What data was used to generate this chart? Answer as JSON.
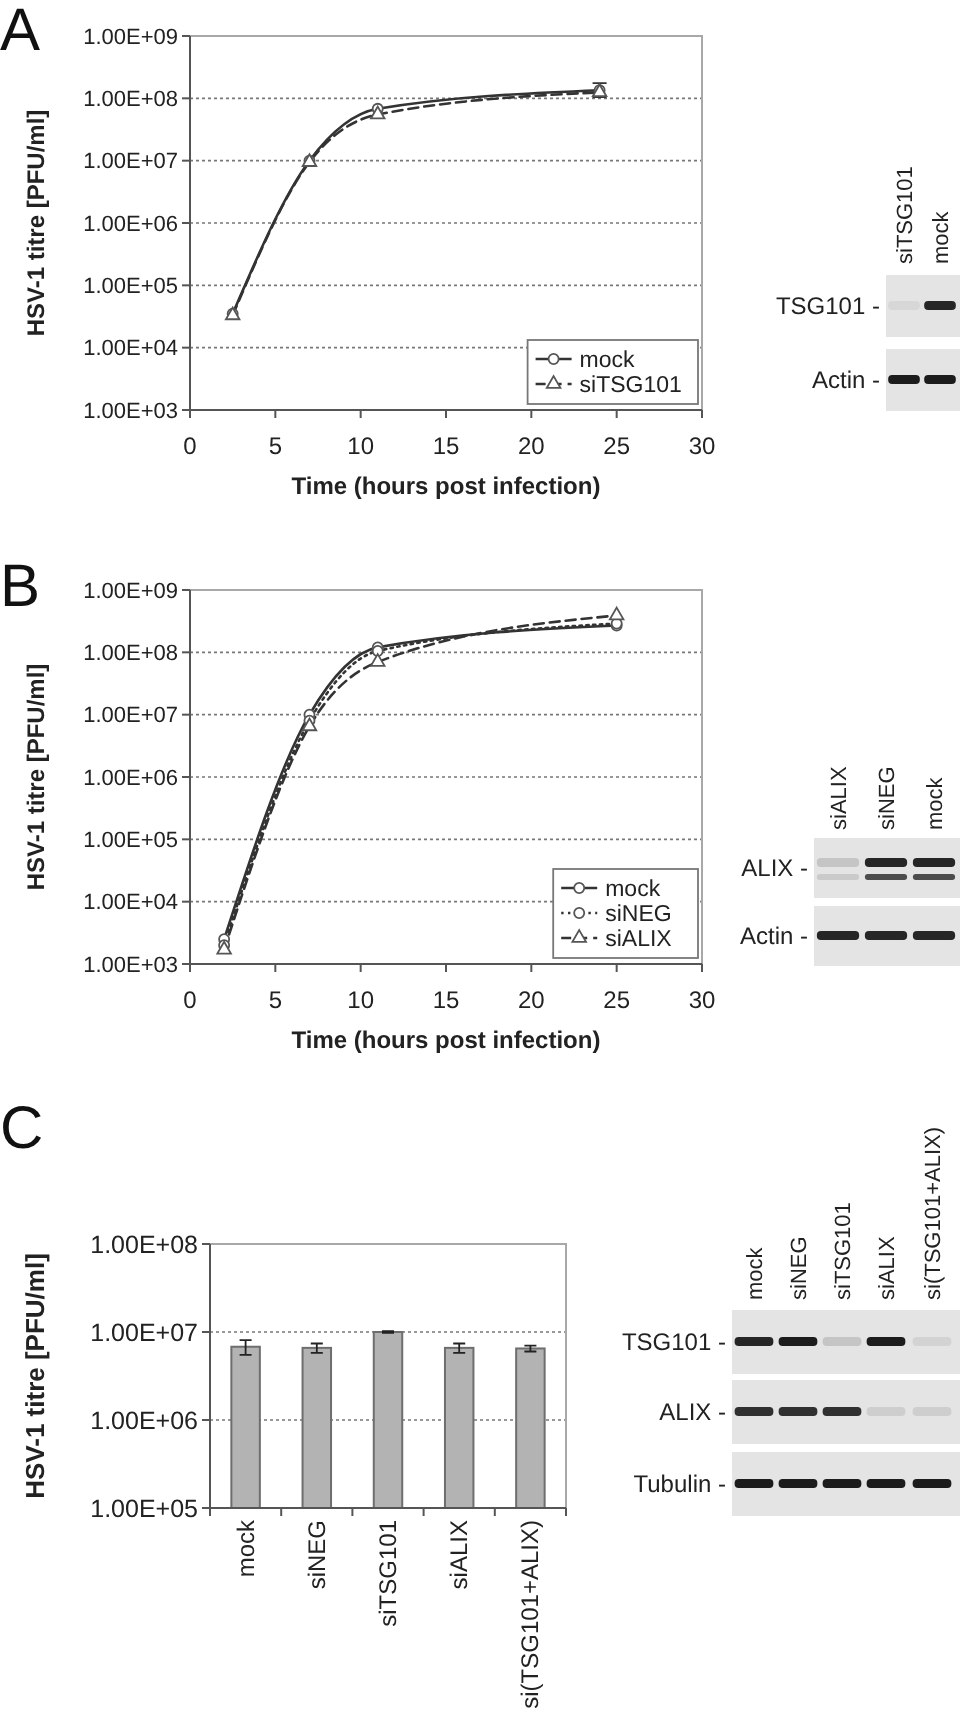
{
  "chart_data": [
    {
      "type": "line",
      "title": "A",
      "xlabel": "Time (hours post infection)",
      "ylabel": "HSV-1 titre [PFU/ml]",
      "log": "y",
      "xlim": [
        0,
        30
      ],
      "xticks": [
        0,
        5,
        10,
        15,
        20,
        25,
        30
      ],
      "ylim": [
        1000,
        1000000000
      ],
      "yticks": [
        {
          "value": 1000,
          "label": "1.00E+03"
        },
        {
          "value": 10000,
          "label": "1.00E+04"
        },
        {
          "value": 100000,
          "label": "1.00E+05"
        },
        {
          "value": 1000000,
          "label": "1.00E+06"
        },
        {
          "value": 10000000,
          "label": "1.00E+07"
        },
        {
          "value": 100000000,
          "label": "1.00E+08"
        },
        {
          "value": 1000000000,
          "label": "1.00E+09"
        }
      ],
      "grid": "y",
      "legend": "bottom right",
      "series": [
        {
          "name": "mock",
          "color": "#333333",
          "x": [
            2.5,
            7,
            11,
            24
          ],
          "values": [
            35000,
            10000000,
            68000000,
            135000000
          ],
          "errors": [
            null,
            null,
            null,
            [
              105000000,
              175000000
            ]
          ],
          "marker": "circle",
          "line_style": "solid"
        },
        {
          "name": "siTSG101",
          "color": "#333333",
          "x": [
            2.5,
            7,
            11,
            24
          ],
          "values": [
            33000,
            9500000,
            55000000,
            125000000
          ],
          "marker": "triangle",
          "line_style": "dashed"
        }
      ]
    },
    {
      "type": "other",
      "categories": [
        "siTSG101",
        "mock"
      ],
      "y_categories": [
        "TSG101 -",
        "Actin -"
      ]
    },
    {
      "type": "line",
      "title": "B",
      "xlabel": "Time (hours post infection)",
      "ylabel": "HSV-1 titre [PFU/ml]",
      "log": "y",
      "xlim": [
        0,
        30
      ],
      "xticks": [
        0,
        5,
        10,
        15,
        20,
        25,
        30
      ],
      "ylim": [
        1000,
        1000000000
      ],
      "yticks": [
        {
          "value": 1000,
          "label": "1.00E+03"
        },
        {
          "value": 10000,
          "label": "1.00E+04"
        },
        {
          "value": 100000,
          "label": "1.00E+05"
        },
        {
          "value": 1000000,
          "label": "1.00E+06"
        },
        {
          "value": 10000000,
          "label": "1.00E+07"
        },
        {
          "value": 100000000,
          "label": "1.00E+08"
        },
        {
          "value": 1000000000,
          "label": "1.00E+09"
        }
      ],
      "grid": "y",
      "legend": "bottom right",
      "series": [
        {
          "name": "mock",
          "color": "#333333",
          "x": [
            2,
            7,
            11,
            25
          ],
          "values": [
            2500,
            10000000,
            120000000,
            270000000
          ],
          "marker": "circle",
          "line_style": "solid"
        },
        {
          "name": "siNEG",
          "color": "#333333",
          "x": [
            2,
            7,
            11,
            25
          ],
          "values": [
            2000,
            8000000,
            105000000,
            290000000
          ],
          "marker": "circle",
          "line_style": "dotted"
        },
        {
          "name": "siALIX",
          "color": "#333333",
          "x": [
            2,
            7,
            11,
            25
          ],
          "values": [
            1700,
            6500000,
            70000000,
            390000000
          ],
          "marker": "triangle",
          "line_style": "dashed"
        }
      ]
    },
    {
      "type": "other",
      "categories": [
        "siALIX",
        "siNEG",
        "mock"
      ],
      "y_categories": [
        "ALIX -",
        "Actin -"
      ]
    },
    {
      "type": "bar",
      "title": "C",
      "ylabel": "HSV-1 titre [PFU/ml]",
      "log": "y",
      "categories": [
        "mock",
        "siNEG",
        "siTSG101",
        "siALIX",
        "si(TSG101+ALIX)"
      ],
      "values": [
        6800000,
        6600000,
        10000000,
        6600000,
        6500000
      ],
      "errors": [
        1300000,
        800000,
        200000,
        800000,
        500000
      ],
      "color": "#b3b3b3",
      "ylim": [
        100000,
        100000000
      ],
      "yticks": [
        {
          "value": 100000,
          "label": "1.00E+05"
        },
        {
          "value": 1000000,
          "label": "1.00E+06"
        },
        {
          "value": 10000000,
          "label": "1.00E+07"
        },
        {
          "value": 100000000,
          "label": "1.00E+08"
        }
      ],
      "grid": "y"
    },
    {
      "type": "other",
      "categories": [
        "mock",
        "siNEG",
        "siTSG101",
        "siALIX",
        "si(TSG101+ALIX)"
      ],
      "y_categories": [
        "TSG101 -",
        "ALIX -",
        "Tubulin -"
      ]
    }
  ]
}
